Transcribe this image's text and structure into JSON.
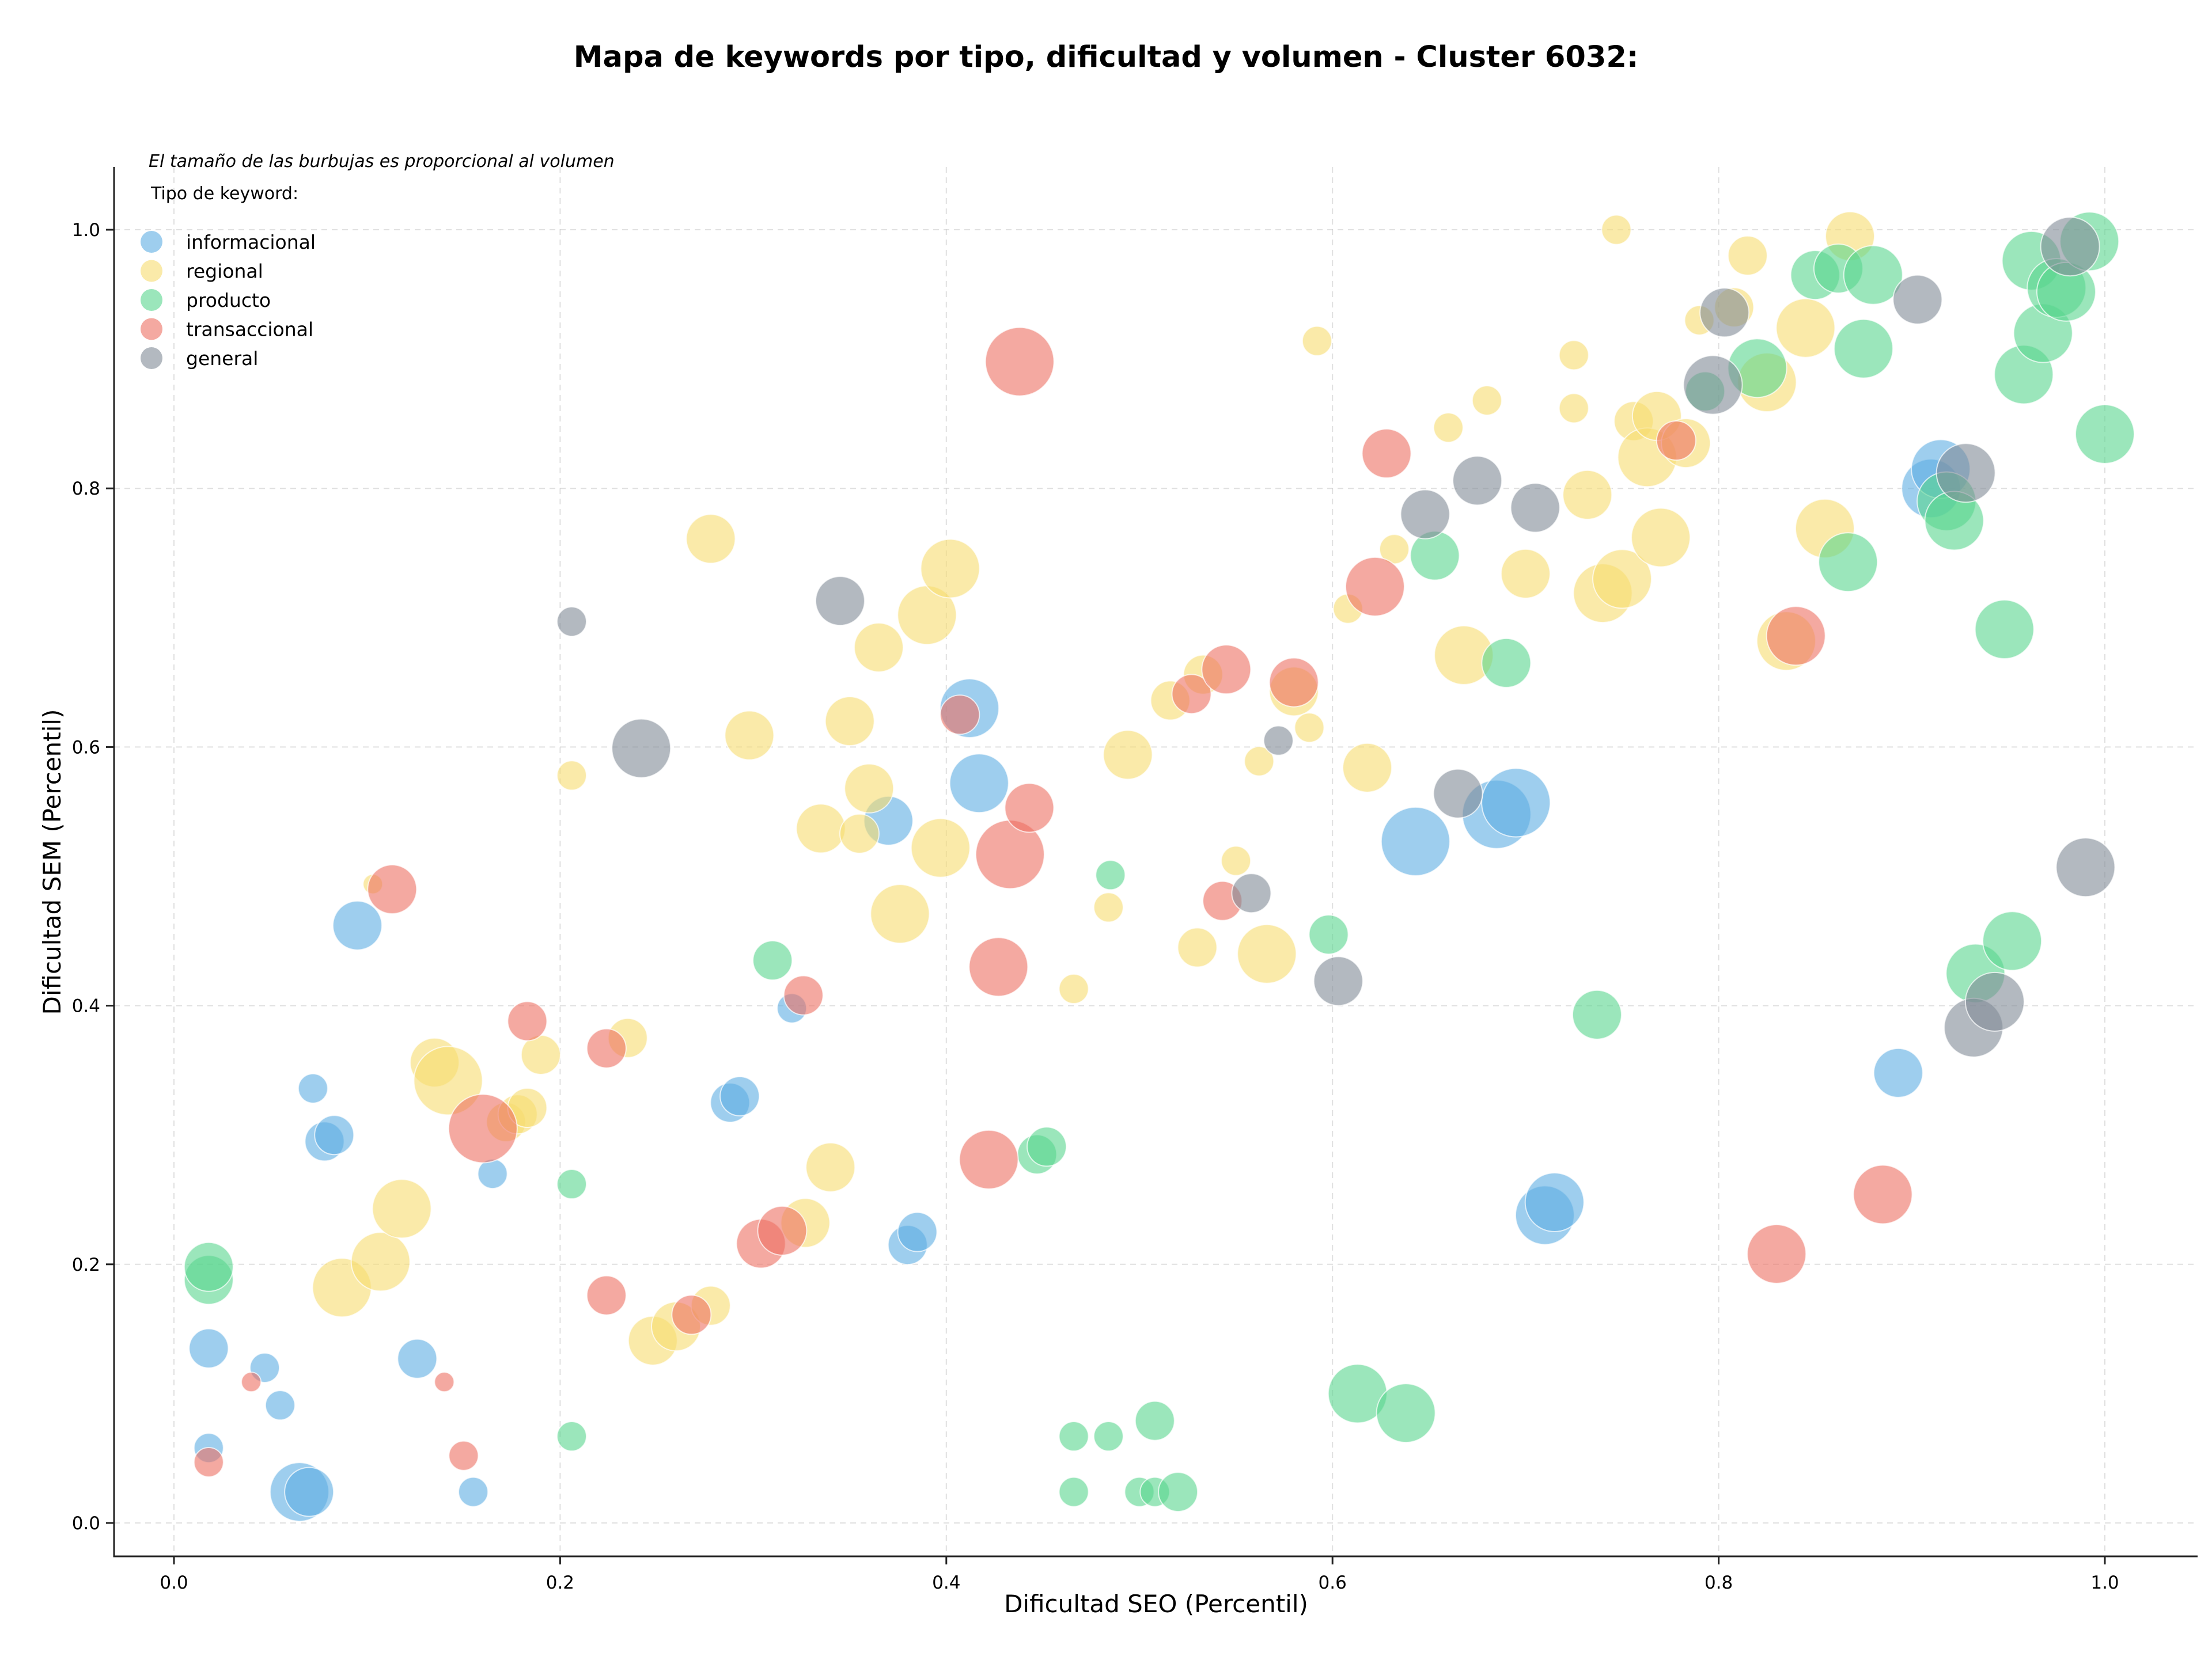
{
  "chart_data": {
    "type": "scatter",
    "title": "Mapa de keywords por tipo, dificultad y volumen - Cluster 6032:",
    "xlabel": "Dificultad SEO (Percentil)",
    "ylabel": "Dificultad SEM (Percentil)",
    "xlim": [
      -0.03,
      1.05
    ],
    "ylim": [
      -0.025,
      1.05
    ],
    "xticks": [
      "0.0",
      "0.2",
      "0.4",
      "0.6",
      "0.8",
      "1.0"
    ],
    "yticks": [
      "0.0",
      "0.2",
      "0.4",
      "0.6",
      "0.8",
      "1.0"
    ],
    "grid": true,
    "note": "El tamaño de las burbujas es proporcional al volumen",
    "legend_title": "Tipo de keyword:",
    "legend_position": "top-left",
    "size_encoding": "point radius proportional to relative volume (1-10)",
    "series": [
      {
        "name": "informacional",
        "color": "#5dade2",
        "points": [
          [
            0.018,
            0.058,
            3
          ],
          [
            0.018,
            0.135,
            4
          ],
          [
            0.047,
            0.12,
            3
          ],
          [
            0.055,
            0.091,
            3
          ],
          [
            0.065,
            0.024,
            6
          ],
          [
            0.07,
            0.024,
            5
          ],
          [
            0.072,
            0.336,
            3
          ],
          [
            0.078,
            0.295,
            4
          ],
          [
            0.083,
            0.3,
            4
          ],
          [
            0.095,
            0.462,
            5
          ],
          [
            0.126,
            0.127,
            4
          ],
          [
            0.155,
            0.024,
            3
          ],
          [
            0.165,
            0.27,
            3
          ],
          [
            0.288,
            0.325,
            4
          ],
          [
            0.293,
            0.33,
            4
          ],
          [
            0.32,
            0.398,
            3
          ],
          [
            0.37,
            0.543,
            5
          ],
          [
            0.38,
            0.215,
            4
          ],
          [
            0.385,
            0.225,
            4
          ],
          [
            0.412,
            0.63,
            6
          ],
          [
            0.417,
            0.572,
            6
          ],
          [
            0.643,
            0.527,
            7
          ],
          [
            0.685,
            0.548,
            7
          ],
          [
            0.695,
            0.557,
            7
          ],
          [
            0.71,
            0.238,
            6
          ],
          [
            0.715,
            0.248,
            6
          ],
          [
            0.893,
            0.348,
            5
          ],
          [
            0.91,
            0.8,
            6
          ],
          [
            0.915,
            0.815,
            6
          ]
        ]
      },
      {
        "name": "regional",
        "color": "#f7dc6f",
        "points": [
          [
            0.087,
            0.182,
            6
          ],
          [
            0.103,
            0.494,
            2
          ],
          [
            0.107,
            0.202,
            6
          ],
          [
            0.118,
            0.243,
            6
          ],
          [
            0.135,
            0.356,
            5
          ],
          [
            0.142,
            0.342,
            7
          ],
          [
            0.172,
            0.31,
            4
          ],
          [
            0.178,
            0.316,
            4
          ],
          [
            0.183,
            0.321,
            4
          ],
          [
            0.19,
            0.362,
            4
          ],
          [
            0.206,
            0.578,
            3
          ],
          [
            0.235,
            0.375,
            4
          ],
          [
            0.248,
            0.141,
            5
          ],
          [
            0.26,
            0.152,
            5
          ],
          [
            0.278,
            0.168,
            4
          ],
          [
            0.278,
            0.761,
            5
          ],
          [
            0.298,
            0.609,
            5
          ],
          [
            0.327,
            0.232,
            5
          ],
          [
            0.335,
            0.537,
            5
          ],
          [
            0.34,
            0.275,
            5
          ],
          [
            0.35,
            0.62,
            5
          ],
          [
            0.355,
            0.533,
            4
          ],
          [
            0.36,
            0.568,
            5
          ],
          [
            0.365,
            0.677,
            5
          ],
          [
            0.376,
            0.471,
            6
          ],
          [
            0.39,
            0.702,
            6
          ],
          [
            0.397,
            0.522,
            6
          ],
          [
            0.402,
            0.738,
            6
          ],
          [
            0.466,
            0.413,
            3
          ],
          [
            0.484,
            0.476,
            3
          ],
          [
            0.494,
            0.594,
            5
          ],
          [
            0.516,
            0.636,
            4
          ],
          [
            0.53,
            0.445,
            4
          ],
          [
            0.533,
            0.656,
            4
          ],
          [
            0.55,
            0.512,
            3
          ],
          [
            0.562,
            0.589,
            3
          ],
          [
            0.566,
            0.44,
            6
          ],
          [
            0.58,
            0.643,
            5
          ],
          [
            0.588,
            0.615,
            3
          ],
          [
            0.592,
            0.914,
            3
          ],
          [
            0.608,
            0.707,
            3
          ],
          [
            0.618,
            0.584,
            5
          ],
          [
            0.632,
            0.753,
            3
          ],
          [
            0.66,
            0.847,
            3
          ],
          [
            0.668,
            0.671,
            6
          ],
          [
            0.68,
            0.868,
            3
          ],
          [
            0.7,
            0.734,
            5
          ],
          [
            0.725,
            0.862,
            3
          ],
          [
            0.725,
            0.903,
            3
          ],
          [
            0.732,
            0.795,
            5
          ],
          [
            0.74,
            0.719,
            6
          ],
          [
            0.747,
            1.0,
            3
          ],
          [
            0.75,
            0.73,
            6
          ],
          [
            0.756,
            0.852,
            4
          ],
          [
            0.763,
            0.824,
            6
          ],
          [
            0.768,
            0.856,
            5
          ],
          [
            0.77,
            0.762,
            6
          ],
          [
            0.783,
            0.835,
            5
          ],
          [
            0.79,
            0.93,
            3
          ],
          [
            0.808,
            0.94,
            4
          ],
          [
            0.815,
            0.98,
            4
          ],
          [
            0.825,
            0.882,
            6
          ],
          [
            0.835,
            0.682,
            6
          ],
          [
            0.845,
            0.924,
            6
          ],
          [
            0.855,
            0.769,
            6
          ],
          [
            0.868,
            0.995,
            5
          ]
        ]
      },
      {
        "name": "producto",
        "color": "#58d68d",
        "points": [
          [
            0.018,
            0.188,
            5
          ],
          [
            0.018,
            0.198,
            5
          ],
          [
            0.206,
            0.067,
            3
          ],
          [
            0.206,
            0.262,
            3
          ],
          [
            0.31,
            0.435,
            4
          ],
          [
            0.447,
            0.285,
            4
          ],
          [
            0.452,
            0.291,
            4
          ],
          [
            0.466,
            0.024,
            3
          ],
          [
            0.466,
            0.067,
            3
          ],
          [
            0.484,
            0.067,
            3
          ],
          [
            0.485,
            0.501,
            3
          ],
          [
            0.5,
            0.024,
            3
          ],
          [
            0.508,
            0.024,
            3
          ],
          [
            0.508,
            0.079,
            4
          ],
          [
            0.52,
            0.024,
            4
          ],
          [
            0.598,
            0.455,
            4
          ],
          [
            0.613,
            0.1,
            6
          ],
          [
            0.638,
            0.085,
            6
          ],
          [
            0.653,
            0.748,
            5
          ],
          [
            0.69,
            0.665,
            5
          ],
          [
            0.737,
            0.393,
            5
          ],
          [
            0.793,
            0.875,
            4
          ],
          [
            0.82,
            0.893,
            6
          ],
          [
            0.85,
            0.965,
            5
          ],
          [
            0.862,
            0.97,
            5
          ],
          [
            0.875,
            0.908,
            6
          ],
          [
            0.867,
            0.743,
            6
          ],
          [
            0.88,
            0.965,
            6
          ],
          [
            0.918,
            0.79,
            6
          ],
          [
            0.922,
            0.775,
            6
          ],
          [
            0.933,
            0.425,
            6
          ],
          [
            0.948,
            0.691,
            6
          ],
          [
            0.952,
            0.45,
            6
          ],
          [
            0.958,
            0.888,
            6
          ],
          [
            0.962,
            0.976,
            6
          ],
          [
            0.968,
            0.92,
            6
          ],
          [
            0.975,
            0.955,
            6
          ],
          [
            0.98,
            0.952,
            6
          ],
          [
            0.992,
            0.991,
            6
          ],
          [
            1.0,
            0.842,
            6
          ]
        ]
      },
      {
        "name": "transaccional",
        "color": "#ec7063",
        "points": [
          [
            0.018,
            0.047,
            3
          ],
          [
            0.04,
            0.109,
            2
          ],
          [
            0.113,
            0.49,
            5
          ],
          [
            0.14,
            0.109,
            2
          ],
          [
            0.15,
            0.052,
            3
          ],
          [
            0.16,
            0.305,
            7
          ],
          [
            0.183,
            0.388,
            4
          ],
          [
            0.224,
            0.176,
            4
          ],
          [
            0.224,
            0.367,
            4
          ],
          [
            0.268,
            0.161,
            4
          ],
          [
            0.304,
            0.216,
            5
          ],
          [
            0.315,
            0.226,
            5
          ],
          [
            0.326,
            0.408,
            4
          ],
          [
            0.407,
            0.625,
            4
          ],
          [
            0.422,
            0.281,
            6
          ],
          [
            0.427,
            0.43,
            6
          ],
          [
            0.433,
            0.517,
            7
          ],
          [
            0.438,
            0.898,
            7
          ],
          [
            0.443,
            0.553,
            5
          ],
          [
            0.527,
            0.641,
            4
          ],
          [
            0.543,
            0.481,
            4
          ],
          [
            0.545,
            0.66,
            5
          ],
          [
            0.58,
            0.65,
            5
          ],
          [
            0.622,
            0.724,
            6
          ],
          [
            0.628,
            0.827,
            5
          ],
          [
            0.778,
            0.837,
            4
          ],
          [
            0.83,
            0.208,
            6
          ],
          [
            0.84,
            0.686,
            6
          ],
          [
            0.885,
            0.254,
            6
          ]
        ]
      },
      {
        "name": "general",
        "color": "#808b96",
        "points": [
          [
            0.206,
            0.697,
            3
          ],
          [
            0.242,
            0.599,
            6
          ],
          [
            0.345,
            0.713,
            5
          ],
          [
            0.558,
            0.487,
            4
          ],
          [
            0.572,
            0.605,
            3
          ],
          [
            0.603,
            0.419,
            5
          ],
          [
            0.648,
            0.78,
            5
          ],
          [
            0.665,
            0.564,
            5
          ],
          [
            0.675,
            0.806,
            5
          ],
          [
            0.705,
            0.785,
            5
          ],
          [
            0.797,
            0.88,
            6
          ],
          [
            0.803,
            0.936,
            5
          ],
          [
            0.903,
            0.946,
            5
          ],
          [
            0.928,
            0.812,
            6
          ],
          [
            0.932,
            0.383,
            6
          ],
          [
            0.943,
            0.403,
            6
          ],
          [
            0.982,
            0.987,
            6
          ],
          [
            0.99,
            0.507,
            6
          ]
        ]
      }
    ]
  }
}
